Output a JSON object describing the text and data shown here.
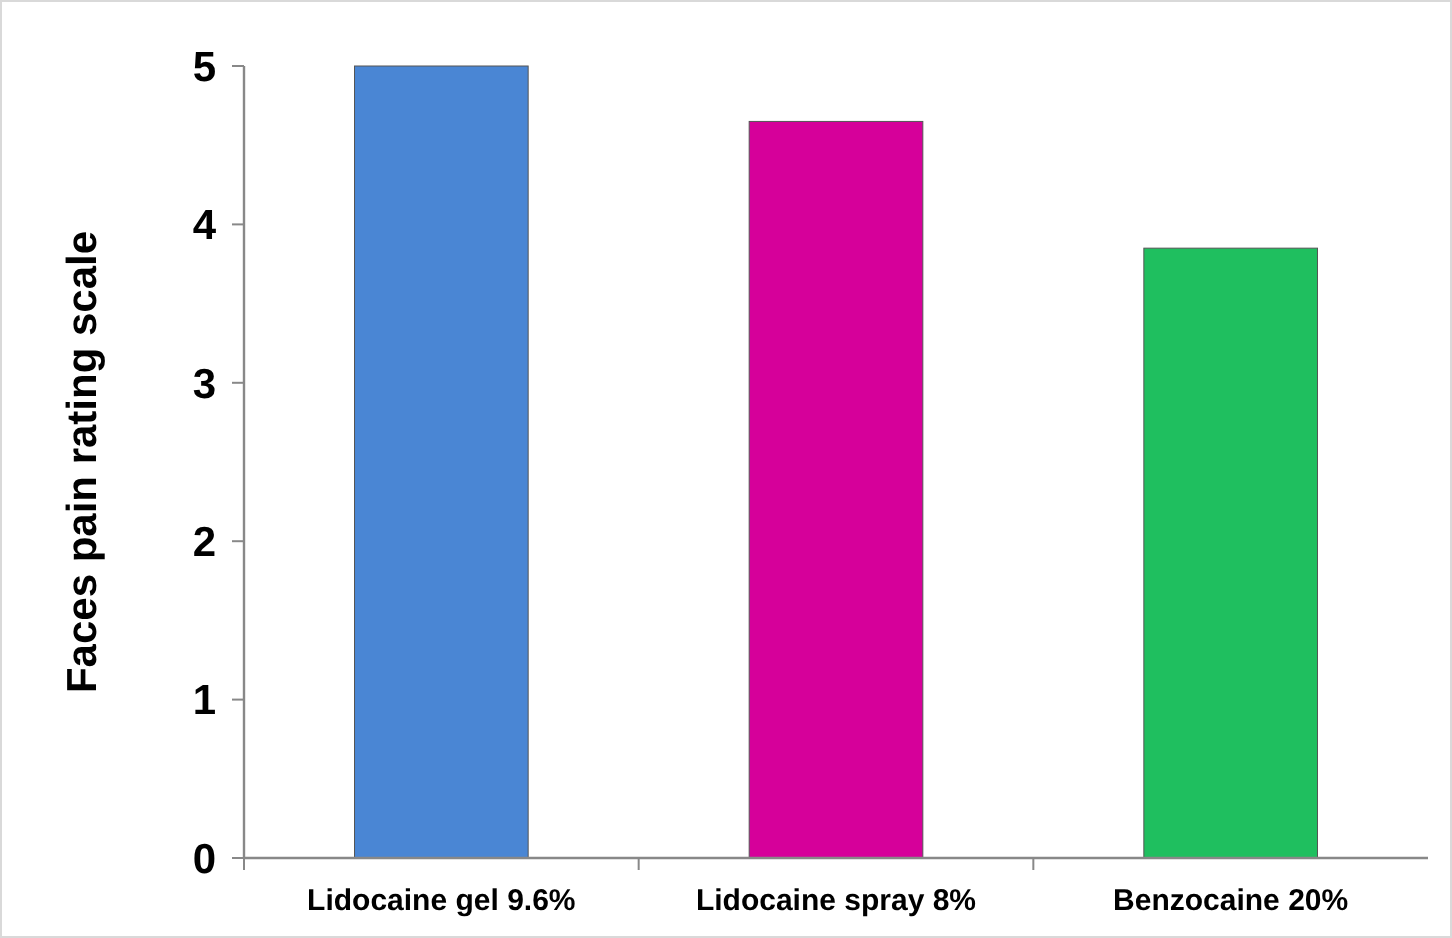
{
  "chart_data": {
    "type": "bar",
    "ylabel": "Faces pain rating scale",
    "categories": [
      "Lidocaine gel 9.6%",
      "Lidocaine spray 8%",
      "Benzocaine 20%"
    ],
    "values": [
      5,
      4.65,
      3.85
    ],
    "colors": [
      "#4a86d4",
      "#d6009a",
      "#1fbf5f"
    ],
    "ylim": [
      0,
      5
    ],
    "yticks": [
      0,
      1,
      2,
      3,
      4,
      5
    ],
    "grid": false
  }
}
